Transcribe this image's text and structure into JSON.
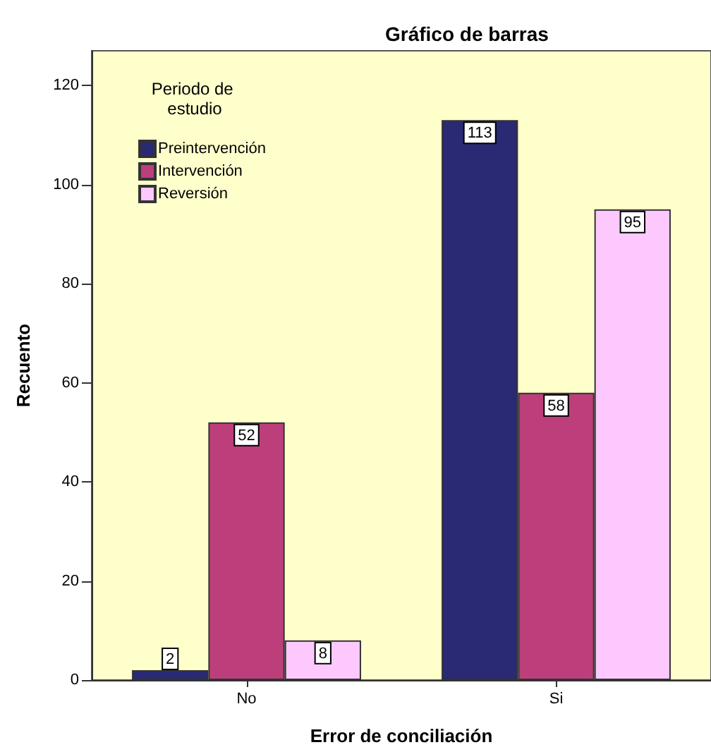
{
  "chart_data": {
    "type": "bar",
    "title": "Gráfico de barras",
    "xlabel": "Error de conciliación",
    "ylabel": "Recuento",
    "legend_title": "Periodo de estudio",
    "categories": [
      "No",
      "Si"
    ],
    "series": [
      {
        "name": "Preintervención",
        "color": "#292a73",
        "values": [
          2,
          113
        ]
      },
      {
        "name": "Intervención",
        "color": "#bc3f7c",
        "values": [
          52,
          58
        ]
      },
      {
        "name": "Reversión",
        "color": "#fdc8fd",
        "values": [
          8,
          95
        ]
      }
    ],
    "ylim": [
      0,
      127
    ],
    "yticks": [
      0,
      20,
      40,
      60,
      80,
      100,
      120
    ],
    "grid": false,
    "legend": "top left",
    "data_labels": true
  }
}
